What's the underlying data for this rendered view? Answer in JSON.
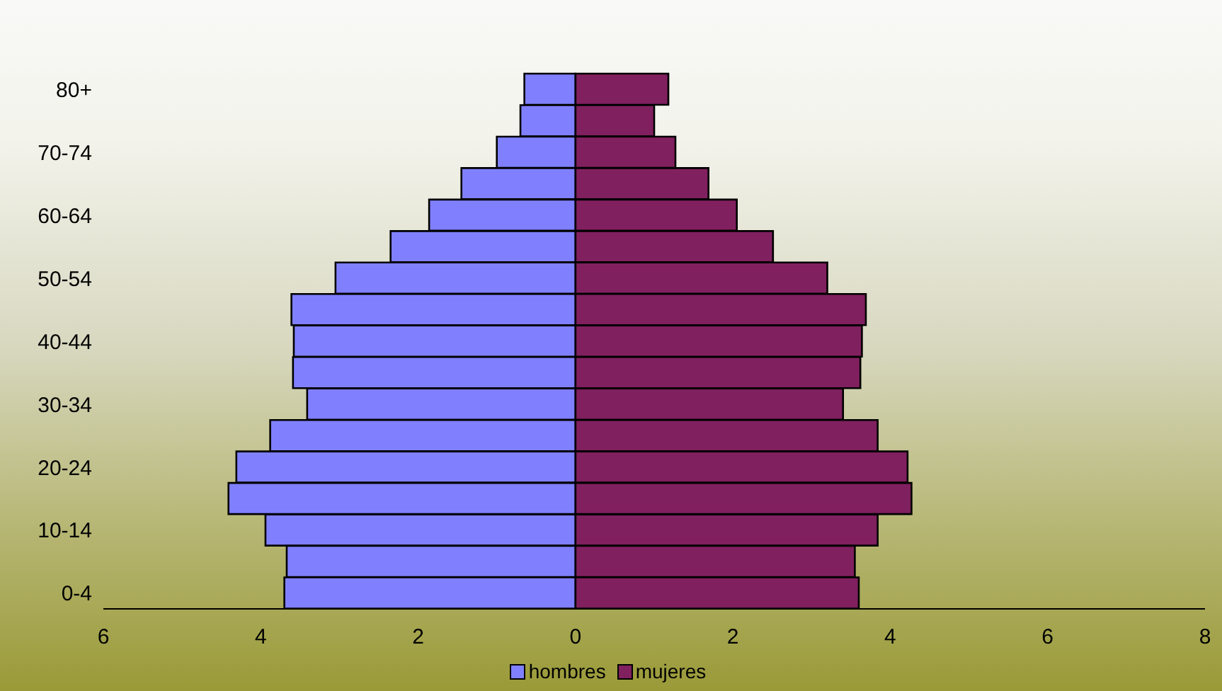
{
  "chart_data": {
    "type": "bar",
    "orientation": "horizontal",
    "stacked": true,
    "categories": [
      "80+",
      null,
      "70-74",
      null,
      "60-64",
      null,
      "50-54",
      null,
      "40-44",
      null,
      "30-34",
      null,
      "20-24",
      null,
      "10-14",
      null,
      "0-4"
    ],
    "series": [
      {
        "name": "hombres",
        "color": "#8080ff",
        "values": [
          -0.65,
          -0.7,
          -1.0,
          -1.45,
          -1.86,
          -2.35,
          -3.05,
          -3.61,
          -3.58,
          -3.59,
          -3.41,
          -3.88,
          -4.31,
          -4.41,
          -3.94,
          -3.67,
          -3.7
        ]
      },
      {
        "name": "mujeres",
        "color": "#80205f",
        "values": [
          1.18,
          1.0,
          1.27,
          1.69,
          2.05,
          2.51,
          3.2,
          3.69,
          3.64,
          3.62,
          3.4,
          3.84,
          4.22,
          4.27,
          3.84,
          3.55,
          3.6
        ]
      }
    ],
    "xlim": [
      -6,
      8
    ],
    "xticks": [
      {
        "value": -6,
        "label": "6"
      },
      {
        "value": -4,
        "label": "4"
      },
      {
        "value": -2,
        "label": "2"
      },
      0,
      2,
      4,
      6,
      8
    ],
    "grid": false,
    "legend": "bottom"
  }
}
